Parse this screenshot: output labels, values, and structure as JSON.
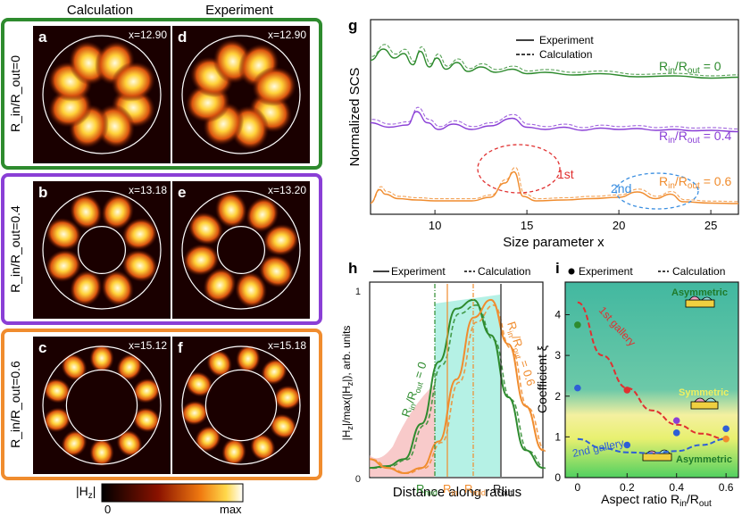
{
  "column_headers": {
    "calculation": "Calculation",
    "experiment": "Experiment"
  },
  "maps": {
    "rows": [
      {
        "row_label": "R_in/R_out=0",
        "color": "#2e8b2e",
        "left": {
          "panel": "a",
          "x": "x=12.90"
        },
        "right": {
          "panel": "d",
          "x": "x=12.90"
        }
      },
      {
        "row_label": "R_in/R_out=0.4",
        "color": "#8a3fd6",
        "left": {
          "panel": "b",
          "x": "x=13.18"
        },
        "right": {
          "panel": "e",
          "x": "x=13.20"
        }
      },
      {
        "row_label": "R_in/R_out=0.6",
        "color": "#f08c2e",
        "left": {
          "panel": "c",
          "x": "x=15.12"
        },
        "right": {
          "panel": "f",
          "x": "x=15.18"
        }
      }
    ],
    "colorbar": {
      "label": "|H_z|",
      "min": "0",
      "max": "max"
    }
  },
  "chart_data": [
    {
      "panel": "g",
      "type": "line",
      "xlabel": "Size parameter x",
      "ylabel": "Normalized SCS",
      "xlim": [
        6.5,
        26.5
      ],
      "xticks": [
        10,
        15,
        20,
        25
      ],
      "legend": {
        "experiment": "Experiment",
        "calculation": "Calculation",
        "position": "top"
      },
      "series": [
        {
          "name": "R_in/R_out = 0",
          "color": "#2e8b2e",
          "offset": 2.0,
          "x": [
            6.5,
            7.2,
            7.8,
            8.3,
            8.8,
            9.2,
            9.7,
            10.1,
            10.6,
            11.2,
            11.8,
            12.5,
            13.3,
            14.2,
            15.0,
            16.0,
            17.5,
            19.0,
            21.0,
            23.0,
            25.0,
            26.5
          ],
          "y": [
            0.55,
            0.8,
            0.6,
            0.7,
            0.45,
            0.75,
            0.4,
            0.6,
            0.35,
            0.5,
            0.3,
            0.4,
            0.28,
            0.35,
            0.25,
            0.28,
            0.22,
            0.25,
            0.18,
            0.2,
            0.15,
            0.17
          ]
        },
        {
          "name": "R_in/R_out = 0.4",
          "color": "#8a3fd6",
          "offset": 1.0,
          "x": [
            6.5,
            7.5,
            8.5,
            9.0,
            9.6,
            10.2,
            11.0,
            12.0,
            13.0,
            14.2,
            15.0,
            16.0,
            17.0,
            18.0,
            19.0,
            20.0,
            21.0,
            22.0,
            23.0,
            24.0,
            25.0,
            26.5
          ],
          "y": [
            0.45,
            0.35,
            0.4,
            0.7,
            0.45,
            0.3,
            0.42,
            0.3,
            0.38,
            0.55,
            0.35,
            0.3,
            0.35,
            0.28,
            0.33,
            0.3,
            0.32,
            0.28,
            0.3,
            0.27,
            0.28,
            0.25
          ]
        },
        {
          "name": "R_in/R_out = 0.6",
          "color": "#f08c2e",
          "offset": 0.0,
          "x": [
            6.5,
            7.0,
            7.3,
            8.0,
            9.0,
            10.0,
            11.0,
            12.0,
            13.0,
            13.8,
            14.3,
            14.8,
            15.5,
            17.0,
            18.5,
            20.0,
            21.0,
            22.0,
            22.8,
            23.5,
            25.0,
            26.5
          ],
          "y": [
            0.05,
            0.35,
            0.25,
            0.15,
            0.12,
            0.1,
            0.1,
            0.1,
            0.18,
            0.5,
            0.75,
            0.2,
            0.1,
            0.12,
            0.15,
            0.18,
            0.3,
            0.15,
            0.25,
            0.08,
            0.05,
            0.04
          ]
        }
      ],
      "annotations": [
        "1st",
        "2nd"
      ]
    },
    {
      "panel": "h",
      "type": "line",
      "xlabel": "Distance along radius",
      "ylabel": "|H_z|/max(|H_z|), arb. units",
      "ylim": [
        0,
        1.05
      ],
      "yticks": [
        0,
        1
      ],
      "legend": {
        "experiment": "Experiment",
        "calculation": "Calculation"
      },
      "series": [
        {
          "name": "R_in/R_out = 0",
          "color": "#2e8b2e",
          "x": [
            0,
            0.1,
            0.2,
            0.3,
            0.4,
            0.5,
            0.6,
            0.7,
            0.8,
            0.9,
            1.0
          ],
          "y": [
            0.05,
            0.06,
            0.1,
            0.3,
            0.65,
            0.95,
            1.0,
            0.8,
            0.45,
            0.15,
            0.05
          ]
        },
        {
          "name": "R_in/R_out = 0.6",
          "color": "#f08c2e",
          "x": [
            0,
            0.1,
            0.2,
            0.3,
            0.4,
            0.5,
            0.6,
            0.7,
            0.8,
            0.9,
            1.0
          ],
          "y": [
            0.1,
            0.05,
            0.02,
            0.05,
            0.2,
            0.55,
            0.9,
            1.0,
            0.75,
            0.4,
            0.15
          ]
        }
      ],
      "markers": [
        "R_mid",
        "R_in",
        "R_mid",
        "R_out"
      ]
    },
    {
      "panel": "i",
      "type": "scatter",
      "xlabel": "Aspect ratio R_in/R_out",
      "ylabel": "Coefficient ξ",
      "xlim": [
        -0.05,
        0.65
      ],
      "ylim": [
        0,
        4.8
      ],
      "xticks": [
        0,
        0.2,
        0.4,
        0.6
      ],
      "yticks": [
        0,
        1,
        2,
        3,
        4
      ],
      "legend": {
        "experiment": "Experiment",
        "calculation": "Calculation"
      },
      "points": [
        {
          "x": 0.0,
          "y": 3.75,
          "color": "#2e8b2e"
        },
        {
          "x": 0.0,
          "y": 2.2,
          "color": "#2e5fd6"
        },
        {
          "x": 0.2,
          "y": 2.15,
          "color": "#e03030"
        },
        {
          "x": 0.2,
          "y": 0.8,
          "color": "#2e5fd6"
        },
        {
          "x": 0.4,
          "y": 1.4,
          "color": "#8a3fd6"
        },
        {
          "x": 0.4,
          "y": 1.1,
          "color": "#2e5fd6"
        },
        {
          "x": 0.6,
          "y": 1.2,
          "color": "#2e5fd6"
        },
        {
          "x": 0.6,
          "y": 0.95,
          "color": "#f08c2e"
        }
      ],
      "curves": [
        {
          "name": "1st gallery",
          "color": "#e03030",
          "x": [
            0,
            0.1,
            0.2,
            0.3,
            0.4,
            0.5,
            0.6
          ],
          "y": [
            4.3,
            3.0,
            2.2,
            1.65,
            1.3,
            1.08,
            0.95
          ]
        },
        {
          "name": "2nd gallery",
          "color": "#2e5fd6",
          "x": [
            0,
            0.1,
            0.2,
            0.3,
            0.4,
            0.5,
            0.6
          ],
          "y": [
            0.95,
            0.72,
            0.62,
            0.6,
            0.65,
            0.8,
            0.95
          ]
        }
      ],
      "region_labels": [
        "Asymmetric",
        "Symmetric",
        "Asymmetric"
      ]
    }
  ]
}
